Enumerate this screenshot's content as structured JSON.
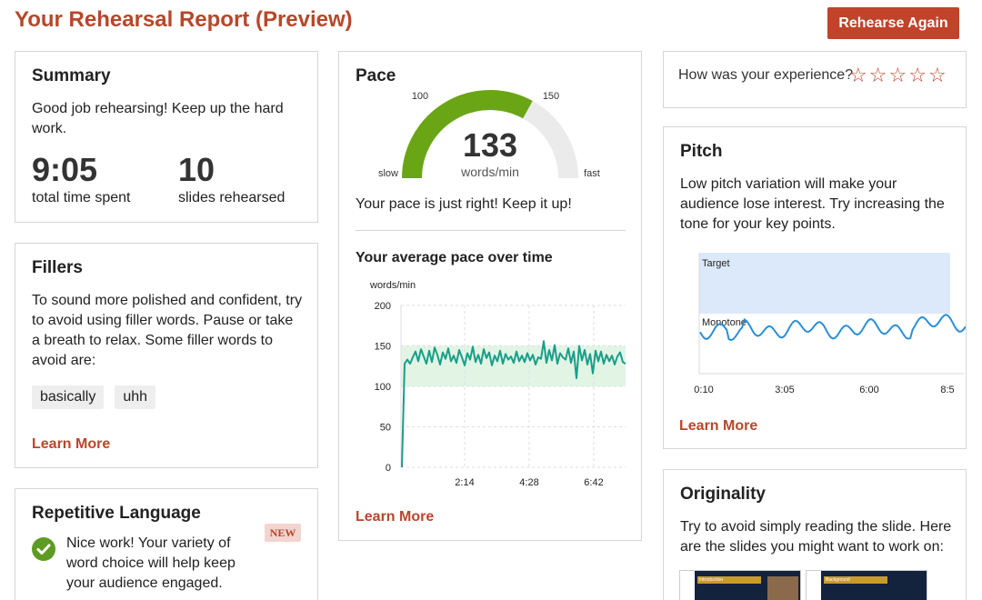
{
  "header": {
    "title": "Your Rehearsal Report (Preview)",
    "rehearse_label": "Rehearse Again"
  },
  "summary": {
    "title": "Summary",
    "message": "Good job rehearsing! Keep up the hard work.",
    "time_value": "9:05",
    "time_label": "total time spent",
    "slides_value": "10",
    "slides_label": "slides rehearsed"
  },
  "fillers": {
    "title": "Fillers",
    "message": "To sound more polished and confident, try to avoid using filler words. Pause or take a breath to relax. Some filler words to avoid are:",
    "words": [
      "basically",
      "uhh"
    ],
    "learn_more": "Learn More"
  },
  "repetitive": {
    "title": "Repetitive Language",
    "badge": "NEW",
    "message": "Nice work! Your variety of word choice will help keep your audience engaged."
  },
  "pace": {
    "title": "Pace",
    "gauge": {
      "value": "133",
      "unit": "words/min",
      "min_tick": "100",
      "max_tick": "150",
      "slow_label": "slow",
      "fast_label": "fast",
      "fill_fraction": 0.66,
      "fill_color": "#6aa516",
      "track_color": "#ebebeb"
    },
    "message": "Your pace is just right! Keep it up!",
    "chart_title": "Your average pace over time",
    "learn_more": "Learn More"
  },
  "experience": {
    "question": "How was your experience?",
    "stars": [
      "☆",
      "☆",
      "☆",
      "☆",
      "☆"
    ]
  },
  "pitch": {
    "title": "Pitch",
    "message": "Low pitch variation will make your audience lose interest. Try increasing the tone for your key points.",
    "target_label": "Target",
    "monotone_label": "Monotone",
    "x_ticks": [
      "0:10",
      "3:05",
      "6:00",
      "8:5"
    ],
    "learn_more": "Learn More"
  },
  "originality": {
    "title": "Originality",
    "message": "Try to avoid simply reading the slide. Here are the slides you might want to work on:",
    "slides": [
      {
        "title": "Introduction"
      },
      {
        "title": "Background"
      }
    ]
  },
  "chart_data": {
    "type": "line",
    "title": "Your average pace over time",
    "ylabel": "words/min",
    "xlabel": "",
    "ylim": [
      0,
      200
    ],
    "yticks": [
      0,
      50,
      100,
      150,
      200
    ],
    "xticks": [
      "2:14",
      "4:28",
      "6:42"
    ],
    "target_band": [
      100,
      150
    ],
    "band_color": "#e2f5e5",
    "line_color": "#1a9e8a",
    "grid": true,
    "series": [
      {
        "values": [
          0,
          128,
          133,
          128,
          136,
          143,
          131,
          146,
          137,
          128,
          144,
          130,
          148,
          139,
          127,
          142,
          134,
          147,
          131,
          138,
          129,
          145,
          136,
          126,
          141,
          133,
          149,
          130,
          139,
          128,
          146,
          135,
          142,
          126,
          138,
          131,
          144,
          128,
          140,
          133,
          137,
          129,
          143,
          131,
          138,
          130,
          141,
          132,
          139,
          127,
          136,
          134,
          156,
          129,
          145,
          132,
          151,
          128,
          141,
          136,
          133,
          147,
          129,
          143,
          110,
          150,
          132,
          145,
          127,
          140,
          116,
          144,
          131,
          143,
          128,
          139,
          131,
          138,
          127,
          137,
          142,
          130,
          128
        ]
      }
    ]
  }
}
